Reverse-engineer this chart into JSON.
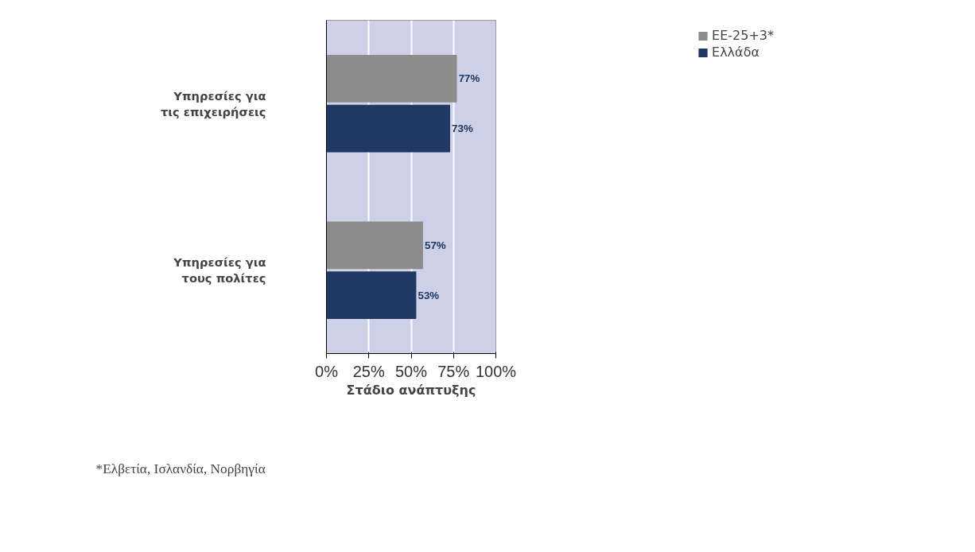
{
  "chart_data": {
    "type": "bar",
    "orientation": "horizontal",
    "categories": [
      "Υπηρεσίες για τις επιχειρήσεις",
      "Υπηρεσίες για τους πολίτες"
    ],
    "series": [
      {
        "name": "ΕΕ-25+3*",
        "color": "#8c8c8c",
        "values": [
          77,
          57
        ],
        "value_labels": [
          "77%",
          "57%"
        ]
      },
      {
        "name": "Ελλάδα",
        "color": "#1f3864",
        "values": [
          73,
          53
        ],
        "value_labels": [
          "73%",
          "53%"
        ]
      }
    ],
    "xlabel": "Στάδιο ανάπτυξης",
    "xlim": [
      0,
      100
    ],
    "xticks": [
      {
        "value": 0,
        "label": "0%"
      },
      {
        "value": 25,
        "label": "25%"
      },
      {
        "value": 50,
        "label": "50%"
      },
      {
        "value": 75,
        "label": "75%"
      },
      {
        "value": 100,
        "label": "100%"
      }
    ],
    "grid": "x",
    "legend": "right",
    "annotations": [
      "*Ελβετία, Ισλανδία, Νορβηγία"
    ]
  }
}
